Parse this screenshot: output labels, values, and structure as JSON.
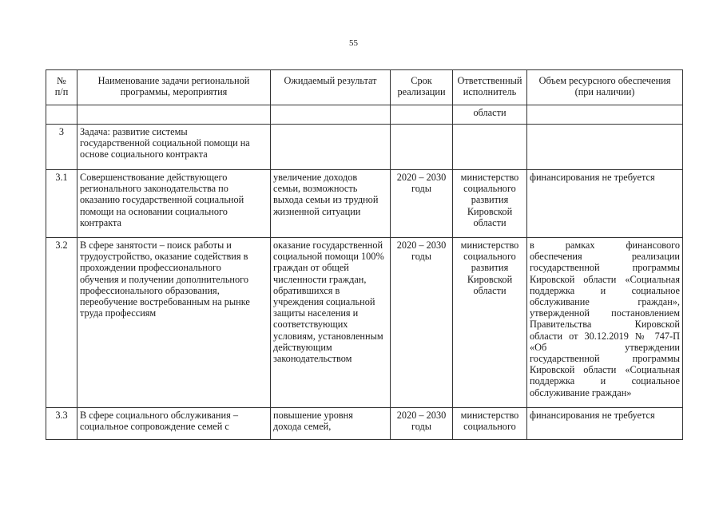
{
  "page_number": "55",
  "table": {
    "headers": [
      [
        "№",
        "п/п"
      ],
      [
        "Наименование задачи региональной",
        "программы, мероприятия"
      ],
      [
        "Ожидаемый результат"
      ],
      [
        "Срок",
        "реализации"
      ],
      [
        "Ответственный",
        "исполнитель"
      ],
      [
        "Объем ресурсного обеспечения",
        "(при наличии)"
      ]
    ],
    "rows": [
      {
        "cells": [
          [],
          [],
          [],
          [],
          [
            "области"
          ],
          []
        ]
      },
      {
        "cells": [
          [
            "3"
          ],
          [
            "Задача: развитие системы",
            "государственной социальной помощи на",
            "основе социального контракта"
          ],
          [],
          [],
          [],
          []
        ]
      },
      {
        "cells": [
          [
            "3.1"
          ],
          [
            "Совершенствование действующего",
            "регионального законодательства по",
            "оказанию государственной социальной",
            "помощи на основании социального",
            "контракта"
          ],
          [
            "увеличение доходов",
            "семьи, возможность",
            "выхода семьи из трудной",
            "жизненной ситуации"
          ],
          [
            "2020 – 2030",
            "годы"
          ],
          [
            "министерство",
            "социального",
            "развития",
            "Кировской",
            "области"
          ],
          [
            "финансирования не требуется"
          ]
        ]
      },
      {
        "cells": [
          [
            "3.2"
          ],
          [
            "В сфере занятости – поиск работы и",
            "трудоустройство, оказание содействия в",
            "прохождении профессионального",
            "обучения и получении дополнительного",
            "профессионального образования,",
            "переобучение востребованным на рынке",
            "труда профессиям"
          ],
          [
            "оказание государственной",
            "социальной помощи 100%",
            "граждан от общей",
            "численности граждан,",
            "обратившихся в",
            "учреждения социальной",
            "защиты населения и",
            "соответствующих",
            "условиям, установленным",
            "действующим",
            "законодательством"
          ],
          [
            "2020 – 2030",
            "годы"
          ],
          [
            "министерство",
            "социального",
            "развития",
            "Кировской",
            "области"
          ],
          [
            "в рамках финансового",
            "обеспечения реализации",
            "государственной программы",
            "Кировской области «Социальная",
            "поддержка и социальное",
            "обслуживание граждан»,",
            "утвержденной постановлением",
            "Правительства Кировской",
            "области от 30.12.2019 № 747-П",
            "«Об утверждении",
            "государственной программы",
            "Кировской области «Социальная",
            "поддержка и социальное",
            "обслуживание граждан»"
          ]
        ]
      },
      {
        "cells": [
          [
            "3.3"
          ],
          [
            "В сфере социального обслуживания –",
            "социальное сопровождение семей с"
          ],
          [
            "повышение уровня",
            "дохода семей,"
          ],
          [
            "2020 – 2030",
            "годы"
          ],
          [
            "министерство",
            "социального"
          ],
          [
            "финансирования не требуется"
          ]
        ]
      }
    ]
  }
}
